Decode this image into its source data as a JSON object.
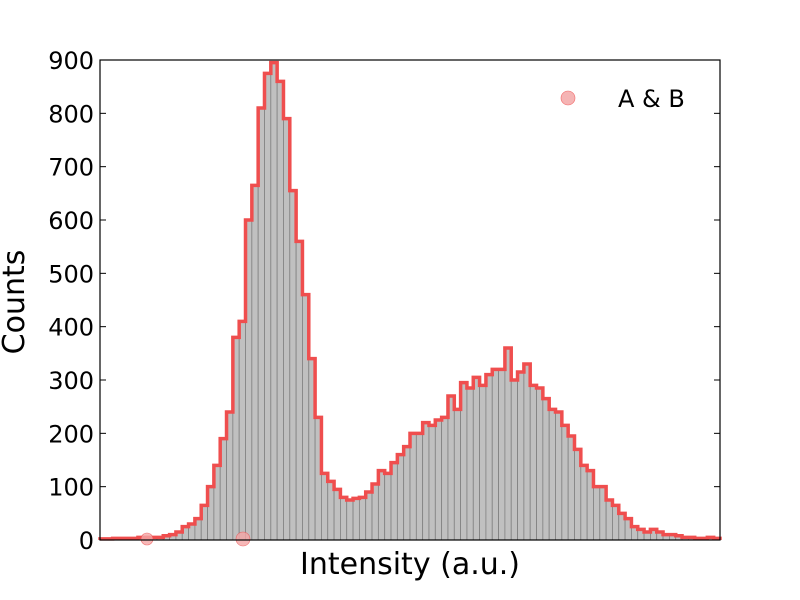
{
  "chart_data": {
    "type": "bar",
    "title": "",
    "xlabel": "Intensity (a.u.)",
    "ylabel": "Counts",
    "ylim": [
      0,
      900
    ],
    "yticks": [
      0,
      100,
      200,
      300,
      400,
      500,
      600,
      700,
      800,
      900
    ],
    "xticks_labeled": false,
    "grid": false,
    "legend_position": "top-right",
    "series": [
      {
        "name": "A & B",
        "values": [
          2,
          2,
          3,
          3,
          3,
          3,
          5,
          5,
          5,
          5,
          8,
          10,
          15,
          25,
          30,
          40,
          65,
          100,
          140,
          190,
          240,
          380,
          410,
          600,
          665,
          810,
          875,
          895,
          860,
          790,
          655,
          560,
          460,
          340,
          230,
          125,
          110,
          95,
          80,
          75,
          78,
          80,
          90,
          105,
          130,
          125,
          145,
          160,
          175,
          200,
          200,
          220,
          215,
          225,
          230,
          270,
          245,
          295,
          285,
          305,
          290,
          310,
          320,
          320,
          360,
          300,
          315,
          330,
          290,
          285,
          265,
          245,
          240,
          215,
          195,
          170,
          140,
          130,
          100,
          100,
          75,
          65,
          50,
          40,
          25,
          20,
          15,
          20,
          15,
          10,
          10,
          8,
          5,
          5,
          3,
          3,
          5,
          3
        ]
      }
    ],
    "colors": {
      "bar_fill": "#c0c0c0",
      "bar_edge": "#808080",
      "outline": "#ef4e4e",
      "legend_marker": "#f4a7a7"
    }
  }
}
